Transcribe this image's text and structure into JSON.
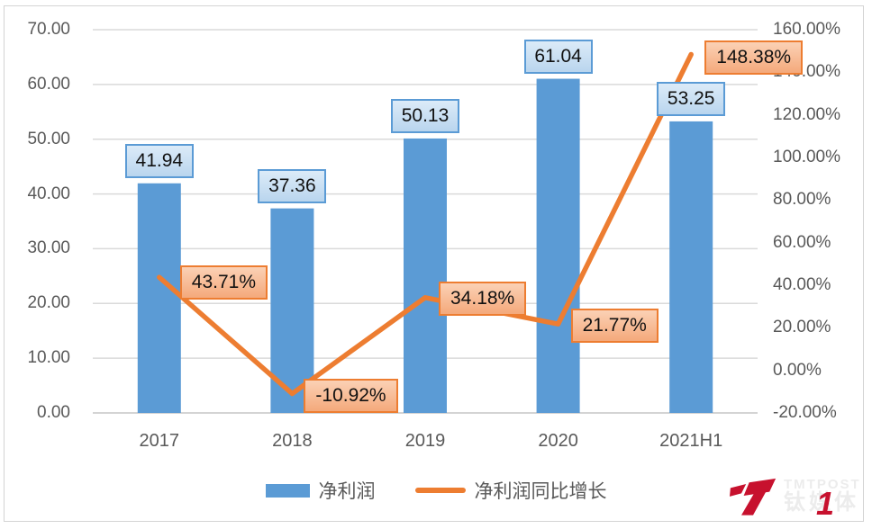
{
  "chart_data": {
    "type": "combo",
    "subtype": "bar+line",
    "categories": [
      "2017",
      "2018",
      "2019",
      "2020",
      "2021H1"
    ],
    "series": [
      {
        "name": "净利润",
        "chart": "bar",
        "axis": "left",
        "color": "#5b9bd5",
        "values": [
          41.94,
          37.36,
          50.13,
          61.04,
          53.25
        ],
        "data_labels": [
          "41.94",
          "37.36",
          "50.13",
          "61.04",
          "53.25"
        ],
        "label_fill_top": "#dcebf8",
        "label_fill_bottom": "#b9d5ee",
        "label_border": "#5b9bd5"
      },
      {
        "name": "净利润同比增长",
        "chart": "line",
        "axis": "right",
        "color": "#ed7d31",
        "values": [
          43.71,
          -10.92,
          34.18,
          21.77,
          148.38
        ],
        "data_labels": [
          "43.71%",
          "-10.92%",
          "34.18%",
          "21.77%",
          "148.38%"
        ],
        "label_fill_top": "#fbd1b5",
        "label_fill_bottom": "#f4a97b",
        "label_border": "#ed7d31"
      }
    ],
    "left_axis": {
      "min": 0,
      "max": 70,
      "step": 10,
      "ticks": [
        "0.00",
        "10.00",
        "20.00",
        "30.00",
        "40.00",
        "50.00",
        "60.00",
        "70.00"
      ]
    },
    "right_axis": {
      "min": -20,
      "max": 160,
      "step": 20,
      "ticks": [
        "-20.00%",
        "0.00%",
        "20.00%",
        "40.00%",
        "60.00%",
        "80.00%",
        "100.00%",
        "120.00%",
        "140.00%",
        "160.00%"
      ]
    },
    "grid": true,
    "gridline_color": "#dadada",
    "baseline_color": "#c6c6c6",
    "axis_text_color": "#595959",
    "legend_position": "bottom",
    "legend": [
      "净利润",
      "净利润同比增长"
    ]
  },
  "watermark": {
    "brand_en": "TMTPOST",
    "brand_cn": "钛媒体",
    "digit": "1",
    "red": "#c7112e"
  }
}
